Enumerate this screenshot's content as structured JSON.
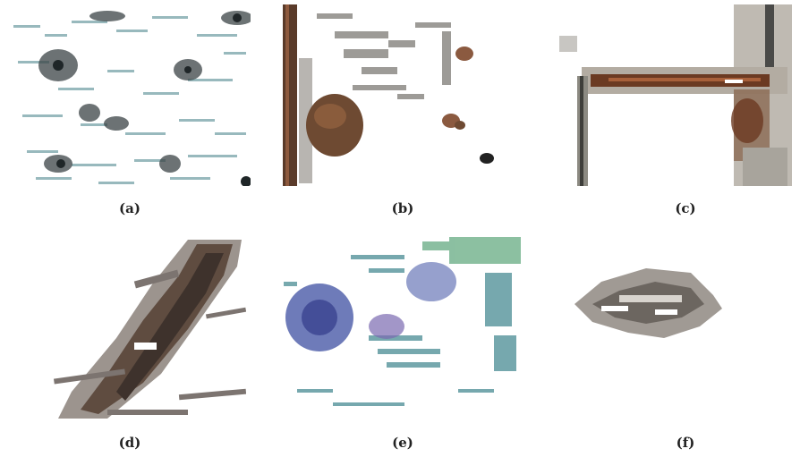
{
  "figure": {
    "panels": [
      {
        "label": "(a)",
        "content": "scattered dark-grey and teal surface specks"
      },
      {
        "label": "(b)",
        "content": "vertical rusty pipe with brown corrosion blob and grey flakes"
      },
      {
        "label": "(c)",
        "content": "L-shaped pipe joint with rust streak along horizontal run"
      },
      {
        "label": "(d)",
        "content": "diagonal brown-grey crack band with shadow streaks"
      },
      {
        "label": "(e)",
        "content": "blue-purple and teal speckle clusters"
      },
      {
        "label": "(f)",
        "content": "small grey flattened spall patch"
      }
    ],
    "colors": {
      "background": "#ffffff",
      "rust": "#7a4428",
      "steel_grey": "#8d8a86",
      "teal": "#5f9aa0",
      "blue": "#4a5aa8",
      "caption": "#222222"
    }
  }
}
